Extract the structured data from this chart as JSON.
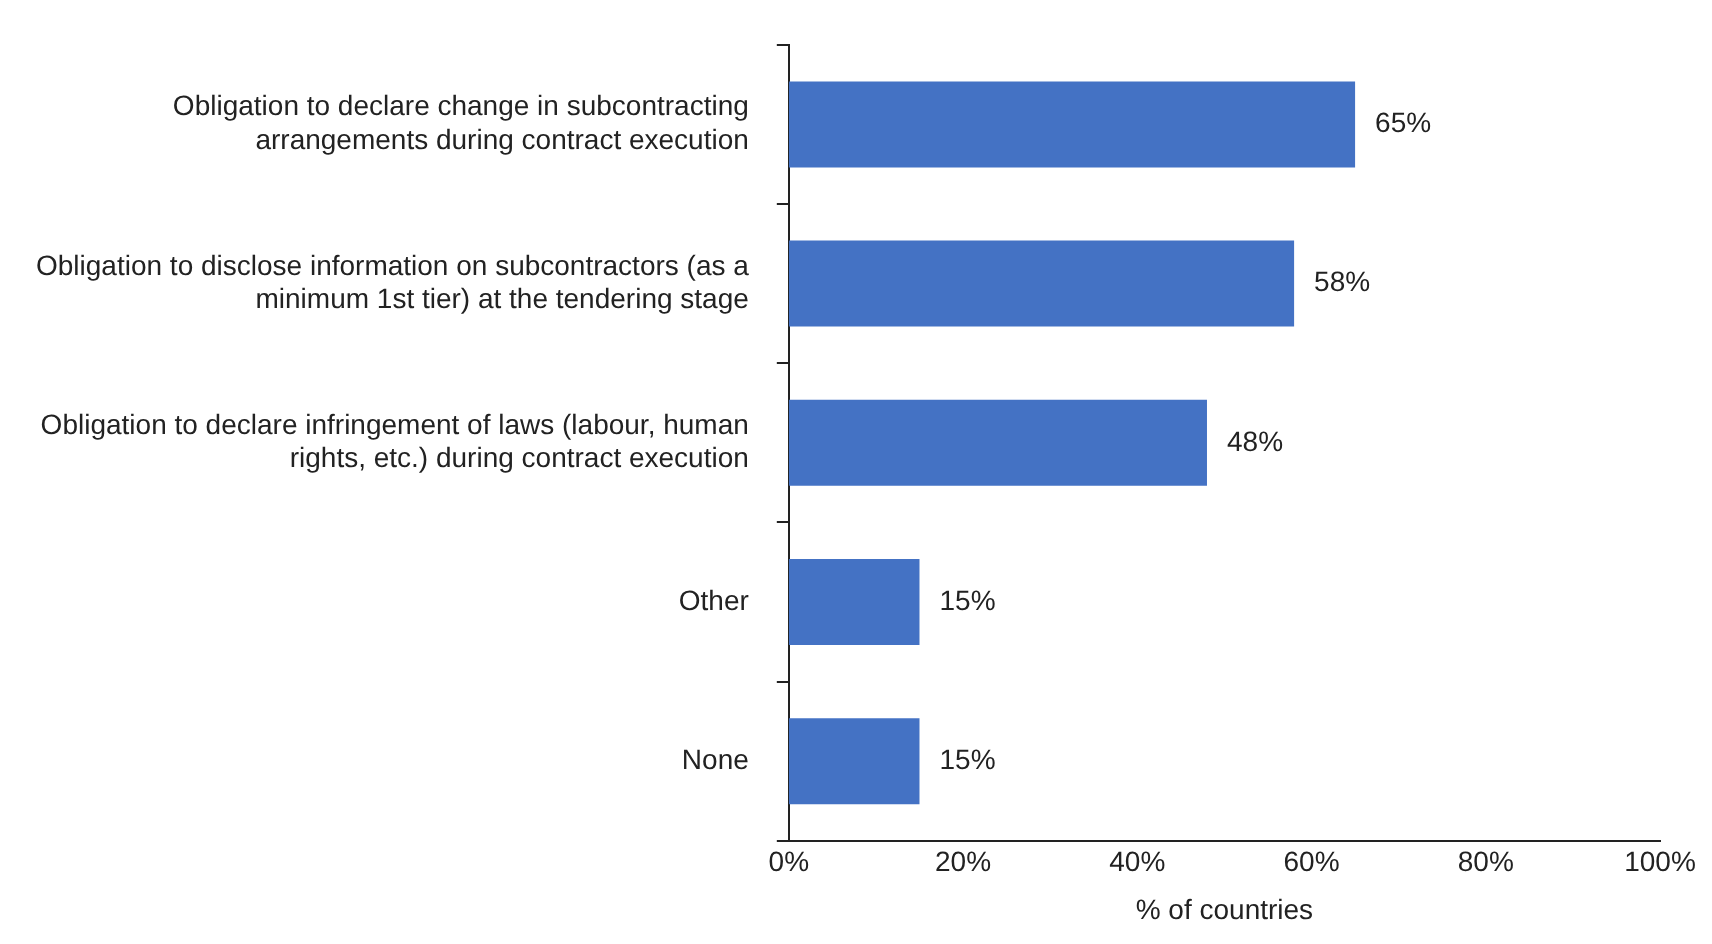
{
  "chart_data": {
    "type": "bar",
    "orientation": "horizontal",
    "xlabel": "% of countries",
    "categories": [
      "Obligation to declare change in subcontracting arrangements during contract execution",
      "Obligation to disclose information on subcontractors (as a minimum 1st tier) at the tendering stage",
      "Obligation to declare infringement of laws (labour, human rights, etc.) during contract execution",
      "Other",
      "None"
    ],
    "values": [
      65,
      58,
      48,
      15,
      15
    ],
    "value_labels": [
      "65%",
      "58%",
      "48%",
      "15%",
      "15%"
    ],
    "color": "#4472c4",
    "xlim": [
      0,
      100
    ],
    "xticks": [
      {
        "value": 0,
        "label": "0%"
      },
      {
        "value": 20,
        "label": "20%"
      },
      {
        "value": 40,
        "label": "40%"
      },
      {
        "value": 60,
        "label": "60%"
      },
      {
        "value": 80,
        "label": "80%"
      },
      {
        "value": 100,
        "label": "100%"
      }
    ],
    "grid": false,
    "legend": false
  }
}
